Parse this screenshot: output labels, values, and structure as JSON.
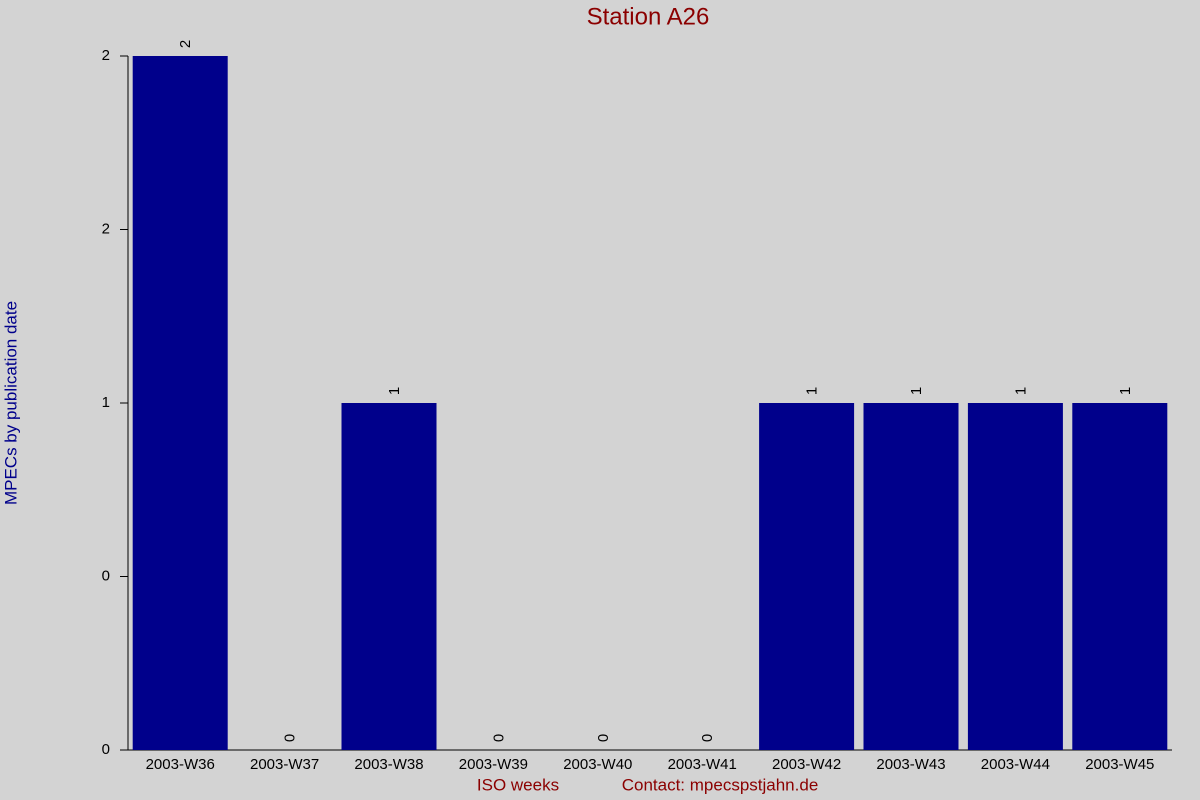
{
  "chart_data": {
    "type": "bar",
    "title": "Station A26",
    "x_label": "ISO weeks",
    "annotation": "Contact: mpecspstjahn.de",
    "y_label": "MPECs by publication date",
    "categories": [
      "2003-W36",
      "2003-W37",
      "2003-W38",
      "2003-W39",
      "2003-W40",
      "2003-W41",
      "2003-W42",
      "2003-W43",
      "2003-W44",
      "2003-W45"
    ],
    "values": [
      2,
      0,
      1,
      0,
      0,
      0,
      1,
      1,
      1,
      1
    ],
    "color": "#00008b",
    "ylim": [
      0,
      2
    ],
    "yticks": [
      0,
      {
        "value": 0.5,
        "label": "0"
      },
      1,
      {
        "value": 1.5,
        "label": "2"
      },
      2
    ]
  }
}
